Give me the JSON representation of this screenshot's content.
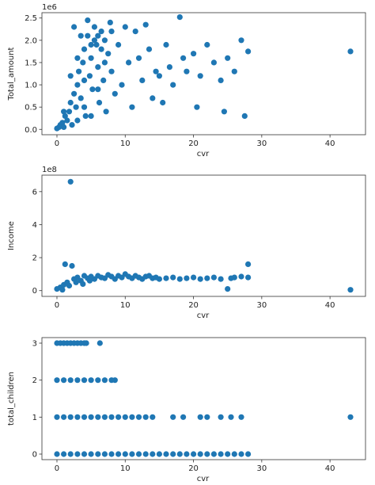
{
  "colors": {
    "marker": "#1f77b4"
  },
  "chart_data": [
    {
      "type": "scatter",
      "name": "total-amount-vs-cvr",
      "xlabel": "cvr",
      "ylabel": "Total_amount",
      "y_offset_label": "1e6",
      "xlim": [
        -2.2,
        45.2
      ],
      "ylim": [
        -0.12,
        2.62
      ],
      "xticks": [
        0,
        10,
        20,
        30,
        40
      ],
      "yticks": [
        0.0,
        0.5,
        1.0,
        1.5,
        2.0,
        2.5
      ],
      "xtick_labels": [
        "0",
        "10",
        "20",
        "30",
        "40"
      ],
      "ytick_labels": [
        "0.0",
        "0.5",
        "1.0",
        "1.5",
        "2.0",
        "2.5"
      ],
      "points": [
        [
          0,
          0.02
        ],
        [
          0.3,
          0.05
        ],
        [
          0.5,
          0.1
        ],
        [
          0.8,
          0.15
        ],
        [
          1,
          0.05
        ],
        [
          1.2,
          0.3
        ],
        [
          1.5,
          0.2
        ],
        [
          1.8,
          0.4
        ],
        [
          2,
          0.6
        ],
        [
          2.2,
          0.1
        ],
        [
          2.5,
          0.8
        ],
        [
          2.8,
          0.5
        ],
        [
          3,
          1
        ],
        [
          3.2,
          1.3
        ],
        [
          3.5,
          0.7
        ],
        [
          3.8,
          1.5
        ],
        [
          4,
          1.8
        ],
        [
          4.2,
          0.3
        ],
        [
          4.5,
          2.1
        ],
        [
          4.8,
          1.2
        ],
        [
          5,
          1.6
        ],
        [
          5.2,
          0.9
        ],
        [
          5.5,
          2.3
        ],
        [
          5.8,
          1.9
        ],
        [
          6,
          1.4
        ],
        [
          6.2,
          0.6
        ],
        [
          6.5,
          2.2
        ],
        [
          6.8,
          1.1
        ],
        [
          7,
          2.0
        ],
        [
          7.2,
          0.4
        ],
        [
          7.5,
          1.7
        ],
        [
          7.8,
          2.4
        ],
        [
          8,
          1.3
        ],
        [
          8.5,
          0.8
        ],
        [
          9,
          1.9
        ],
        [
          9.5,
          1.0
        ],
        [
          10,
          2.3
        ],
        [
          10.5,
          1.5
        ],
        [
          11,
          0.5
        ],
        [
          11.5,
          2.2
        ],
        [
          12,
          1.6
        ],
        [
          12.5,
          1.1
        ],
        [
          13,
          2.35
        ],
        [
          13.5,
          1.8
        ],
        [
          14,
          0.7
        ],
        [
          14.5,
          1.3
        ],
        [
          15,
          1.2
        ],
        [
          15.5,
          0.6
        ],
        [
          16,
          1.9
        ],
        [
          16.5,
          1.4
        ],
        [
          17,
          1.0
        ],
        [
          18,
          2.52
        ],
        [
          18.5,
          1.6
        ],
        [
          19,
          1.3
        ],
        [
          20,
          1.7
        ],
        [
          20.5,
          0.5
        ],
        [
          21,
          1.2
        ],
        [
          22,
          1.9
        ],
        [
          23,
          1.5
        ],
        [
          24,
          1.1
        ],
        [
          24.5,
          0.4
        ],
        [
          25,
          1.6
        ],
        [
          26,
          1.3
        ],
        [
          27,
          2.0
        ],
        [
          27.5,
          0.3
        ],
        [
          28,
          1.75
        ],
        [
          43,
          1.75
        ],
        [
          2.5,
          2.3
        ],
        [
          3.5,
          2.1
        ],
        [
          4.5,
          2.45
        ],
        [
          5.5,
          2.0
        ],
        [
          6.5,
          1.8
        ],
        [
          3,
          0.2
        ],
        [
          4,
          0.5
        ],
        [
          5,
          0.3
        ],
        [
          6,
          0.9
        ],
        [
          1,
          0.4
        ],
        [
          2,
          1.2
        ],
        [
          3,
          1.6
        ],
        [
          4,
          1.1
        ],
        [
          5,
          1.9
        ],
        [
          6,
          2.1
        ],
        [
          7,
          1.5
        ],
        [
          8,
          2.2
        ]
      ]
    },
    {
      "type": "scatter",
      "name": "income-vs-cvr",
      "xlabel": "cvr",
      "ylabel": "Income",
      "y_offset_label": "1e8",
      "xlim": [
        -2.2,
        45.2
      ],
      "ylim": [
        -0.35,
        7.0
      ],
      "xticks": [
        0,
        10,
        20,
        30,
        40
      ],
      "yticks": [
        0,
        2,
        4,
        6
      ],
      "xtick_labels": [
        "0",
        "10",
        "20",
        "30",
        "40"
      ],
      "ytick_labels": [
        "0",
        "2",
        "4",
        "6"
      ],
      "points": [
        [
          0,
          0.1
        ],
        [
          0.5,
          0.2
        ],
        [
          1,
          0.35
        ],
        [
          1.5,
          0.5
        ],
        [
          2,
          6.6
        ],
        [
          1.2,
          1.6
        ],
        [
          2.2,
          1.5
        ],
        [
          2.5,
          0.7
        ],
        [
          3,
          0.8
        ],
        [
          3.5,
          0.6
        ],
        [
          4,
          0.9
        ],
        [
          4.5,
          0.75
        ],
        [
          5,
          0.85
        ],
        [
          5.5,
          0.7
        ],
        [
          6,
          0.9
        ],
        [
          6.5,
          0.8
        ],
        [
          7,
          0.75
        ],
        [
          7.5,
          0.95
        ],
        [
          8,
          0.85
        ],
        [
          8.5,
          0.7
        ],
        [
          9,
          0.9
        ],
        [
          9.5,
          0.8
        ],
        [
          10,
          1.0
        ],
        [
          10.5,
          0.85
        ],
        [
          11,
          0.75
        ],
        [
          11.5,
          0.9
        ],
        [
          12,
          0.8
        ],
        [
          12.5,
          0.7
        ],
        [
          13,
          0.85
        ],
        [
          13.5,
          0.9
        ],
        [
          14,
          0.75
        ],
        [
          14.5,
          0.8
        ],
        [
          15,
          0.7
        ],
        [
          16,
          0.75
        ],
        [
          17,
          0.8
        ],
        [
          18,
          0.7
        ],
        [
          19,
          0.75
        ],
        [
          20,
          0.8
        ],
        [
          21,
          0.7
        ],
        [
          22,
          0.75
        ],
        [
          23,
          0.8
        ],
        [
          24,
          0.7
        ],
        [
          25,
          0.1
        ],
        [
          25.5,
          0.75
        ],
        [
          26,
          0.8
        ],
        [
          27,
          0.85
        ],
        [
          28,
          1.6
        ],
        [
          28,
          0.8
        ],
        [
          43,
          0.05
        ],
        [
          0.8,
          0.05
        ],
        [
          1.8,
          0.3
        ],
        [
          2.8,
          0.5
        ],
        [
          3.8,
          0.4
        ],
        [
          4.8,
          0.6
        ]
      ]
    },
    {
      "type": "scatter",
      "name": "total-children-vs-cvr",
      "xlabel": "cvr",
      "ylabel": "total_children",
      "y_offset_label": "",
      "xlim": [
        -2.2,
        45.2
      ],
      "ylim": [
        -0.15,
        3.15
      ],
      "xticks": [
        0,
        10,
        20,
        30,
        40
      ],
      "yticks": [
        0,
        1,
        2,
        3
      ],
      "xtick_labels": [
        "0",
        "10",
        "20",
        "30",
        "40"
      ],
      "ytick_labels": [
        "0",
        "1",
        "2",
        "3"
      ],
      "points": [
        [
          0,
          0
        ],
        [
          1,
          0
        ],
        [
          2,
          0
        ],
        [
          3,
          0
        ],
        [
          4,
          0
        ],
        [
          5,
          0
        ],
        [
          6,
          0
        ],
        [
          7,
          0
        ],
        [
          8,
          0
        ],
        [
          9,
          0
        ],
        [
          10,
          0
        ],
        [
          11,
          0
        ],
        [
          12,
          0
        ],
        [
          13,
          0
        ],
        [
          14,
          0
        ],
        [
          15,
          0
        ],
        [
          16,
          0
        ],
        [
          17,
          0
        ],
        [
          18,
          0
        ],
        [
          19,
          0
        ],
        [
          20,
          0
        ],
        [
          21,
          0
        ],
        [
          22,
          0
        ],
        [
          23,
          0
        ],
        [
          24,
          0
        ],
        [
          25,
          0
        ],
        [
          26,
          0
        ],
        [
          27,
          0
        ],
        [
          28,
          0
        ],
        [
          0,
          1
        ],
        [
          1,
          1
        ],
        [
          2,
          1
        ],
        [
          3,
          1
        ],
        [
          4,
          1
        ],
        [
          5,
          1
        ],
        [
          6,
          1
        ],
        [
          7,
          1
        ],
        [
          8,
          1
        ],
        [
          9,
          1
        ],
        [
          10,
          1
        ],
        [
          11,
          1
        ],
        [
          12,
          1
        ],
        [
          13,
          1
        ],
        [
          14,
          1
        ],
        [
          17,
          1
        ],
        [
          18.5,
          1
        ],
        [
          21,
          1
        ],
        [
          22,
          1
        ],
        [
          24,
          1
        ],
        [
          25.5,
          1
        ],
        [
          27,
          1
        ],
        [
          43,
          1
        ],
        [
          0,
          2
        ],
        [
          1,
          2
        ],
        [
          2,
          2
        ],
        [
          3,
          2
        ],
        [
          4,
          2
        ],
        [
          5,
          2
        ],
        [
          6,
          2
        ],
        [
          7,
          2
        ],
        [
          8,
          2
        ],
        [
          8.5,
          2
        ],
        [
          0,
          3
        ],
        [
          0.5,
          3
        ],
        [
          1,
          3
        ],
        [
          1.5,
          3
        ],
        [
          2,
          3
        ],
        [
          2.5,
          3
        ],
        [
          3,
          3
        ],
        [
          3.5,
          3
        ],
        [
          4,
          3
        ],
        [
          4.3,
          3
        ],
        [
          6.3,
          3
        ]
      ]
    }
  ]
}
